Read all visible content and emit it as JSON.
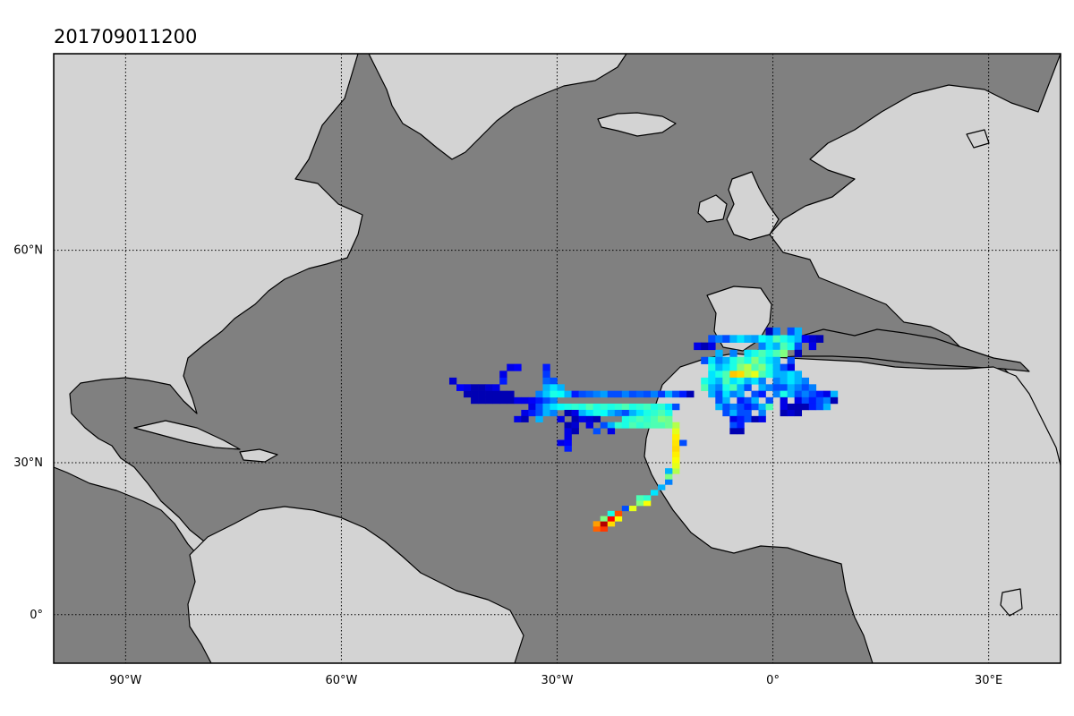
{
  "title": "201709011200",
  "colors": {
    "ocean": "#808080",
    "land": "#d3d3d3",
    "coast": "#000000",
    "grid": "#000000"
  },
  "map": {
    "projection": "mercator",
    "lon_range": [
      -100,
      40
    ],
    "lat_range": [
      -10,
      75
    ],
    "gridlines": "dotted",
    "meridians": [
      {
        "lon": -90,
        "label": "90°W"
      },
      {
        "lon": -60,
        "label": "60°W"
      },
      {
        "lon": -30,
        "label": "30°W"
      },
      {
        "lon": 0,
        "label": "0°"
      },
      {
        "lon": 30,
        "label": "30°E"
      }
    ],
    "parallels": [
      {
        "lat": 0,
        "label": "0°"
      },
      {
        "lat": 30,
        "label": "30°N"
      },
      {
        "lat": 60,
        "label": "60°N"
      }
    ]
  },
  "chart_data": {
    "type": "heatmap",
    "colormap": "jet",
    "cell_size_deg": 1,
    "value_range": [
      0,
      1
    ],
    "cells": [
      [
        -25,
        17,
        0.78
      ],
      [
        -24,
        17,
        0.82
      ],
      [
        -25,
        18,
        0.72
      ],
      [
        -24,
        18,
        0.95
      ],
      [
        -23,
        18,
        0.66
      ],
      [
        -24,
        19,
        0.5
      ],
      [
        -23,
        19,
        0.88
      ],
      [
        -22,
        19,
        0.62
      ],
      [
        -23,
        20,
        0.4
      ],
      [
        -22,
        20,
        0.8
      ],
      [
        -21,
        21,
        0.2
      ],
      [
        -20,
        21,
        0.6
      ],
      [
        -19,
        22,
        0.5
      ],
      [
        -18,
        22,
        0.62
      ],
      [
        -19,
        23,
        0.45
      ],
      [
        -18,
        23,
        0.42
      ],
      [
        -17,
        24,
        0.35
      ],
      [
        -16,
        25,
        0.3
      ],
      [
        -15,
        26,
        0.25
      ],
      [
        -15,
        27,
        0.5
      ],
      [
        -14,
        28,
        0.55
      ],
      [
        -15,
        28,
        0.3
      ],
      [
        -14,
        29,
        0.6
      ],
      [
        -14,
        30,
        0.62
      ],
      [
        -14,
        31,
        0.64
      ],
      [
        -14,
        32,
        0.66
      ],
      [
        -14,
        33,
        0.65
      ],
      [
        -14,
        34,
        0.64
      ],
      [
        -14,
        35,
        0.6
      ],
      [
        -14,
        36,
        0.55
      ],
      [
        -13,
        33,
        0.2
      ],
      [
        -45,
        43,
        0.08
      ],
      [
        -44,
        42,
        0.12
      ],
      [
        -43,
        42,
        0.1
      ],
      [
        -42,
        42,
        0.05
      ],
      [
        -41,
        42,
        0.05
      ],
      [
        -40,
        42,
        0.08
      ],
      [
        -39,
        42,
        0.1
      ],
      [
        -43,
        41,
        0.05
      ],
      [
        -42,
        41,
        0.05
      ],
      [
        -41,
        41,
        0.05
      ],
      [
        -40,
        41,
        0.05
      ],
      [
        -39,
        41,
        0.05
      ],
      [
        -38,
        41,
        0.05
      ],
      [
        -37,
        41,
        0.05
      ],
      [
        -42,
        40,
        0.05
      ],
      [
        -41,
        40,
        0.05
      ],
      [
        -40,
        40,
        0.05
      ],
      [
        -39,
        40,
        0.05
      ],
      [
        -38,
        40,
        0.05
      ],
      [
        -37,
        40,
        0.05
      ],
      [
        -36,
        40,
        0.1
      ],
      [
        -35,
        40,
        0.1
      ],
      [
        -34,
        40,
        0.12
      ],
      [
        -33,
        40,
        0.15
      ],
      [
        -32,
        40,
        0.2
      ],
      [
        -31,
        40,
        0.25
      ],
      [
        -38,
        44,
        0.1
      ],
      [
        -37,
        45,
        0.1
      ],
      [
        -36,
        45,
        0.12
      ],
      [
        -38,
        43,
        0.15
      ],
      [
        -32,
        45,
        0.15
      ],
      [
        -32,
        44,
        0.18
      ],
      [
        -32,
        43,
        0.22
      ],
      [
        -31,
        43,
        0.2
      ],
      [
        -32,
        42,
        0.3
      ],
      [
        -31,
        42,
        0.35
      ],
      [
        -30,
        42,
        0.3
      ],
      [
        -33,
        41,
        0.25
      ],
      [
        -32,
        41,
        0.32
      ],
      [
        -31,
        41,
        0.4
      ],
      [
        -30,
        41,
        0.38
      ],
      [
        -29,
        41,
        0.3
      ],
      [
        -28,
        41,
        0.15
      ],
      [
        -27,
        41,
        0.2
      ],
      [
        -26,
        41,
        0.22
      ],
      [
        -25,
        41,
        0.25
      ],
      [
        -24,
        41,
        0.28
      ],
      [
        -23,
        41,
        0.2
      ],
      [
        -22,
        41,
        0.2
      ],
      [
        -21,
        41,
        0.25
      ],
      [
        -20,
        41,
        0.2
      ],
      [
        -19,
        41,
        0.22
      ],
      [
        -18,
        41,
        0.2
      ],
      [
        -17,
        41,
        0.25
      ],
      [
        -16,
        41,
        0.18
      ],
      [
        -15,
        41,
        0.3
      ],
      [
        -14,
        41,
        0.2
      ],
      [
        -13,
        41,
        0.15
      ],
      [
        -12,
        41,
        0.05
      ],
      [
        -34,
        39,
        0.1
      ],
      [
        -33,
        39,
        0.2
      ],
      [
        -32,
        39,
        0.3
      ],
      [
        -31,
        39,
        0.35
      ],
      [
        -30,
        39,
        0.38
      ],
      [
        -29,
        39,
        0.4
      ],
      [
        -28,
        39,
        0.42
      ],
      [
        -27,
        39,
        0.4
      ],
      [
        -26,
        39,
        0.45
      ],
      [
        -25,
        39,
        0.4
      ],
      [
        -24,
        39,
        0.42
      ],
      [
        -23,
        39,
        0.4
      ],
      [
        -22,
        39,
        0.42
      ],
      [
        -21,
        39,
        0.45
      ],
      [
        -20,
        39,
        0.4
      ],
      [
        -19,
        39,
        0.42
      ],
      [
        -18,
        39,
        0.44
      ],
      [
        -17,
        39,
        0.4
      ],
      [
        -16,
        39,
        0.42
      ],
      [
        -15,
        39,
        0.35
      ],
      [
        -14,
        39,
        0.2
      ],
      [
        -35,
        38,
        0.1
      ],
      [
        -34,
        38,
        0.15
      ],
      [
        -33,
        38,
        0.2
      ],
      [
        -32,
        38,
        0.3
      ],
      [
        -31,
        38,
        0.25
      ],
      [
        -29,
        38,
        0.05
      ],
      [
        -28,
        38,
        0.1
      ],
      [
        -27,
        38,
        0.3
      ],
      [
        -26,
        38,
        0.35
      ],
      [
        -25,
        38,
        0.4
      ],
      [
        -24,
        38,
        0.38
      ],
      [
        -23,
        38,
        0.3
      ],
      [
        -22,
        38,
        0.25
      ],
      [
        -21,
        38,
        0.2
      ],
      [
        -20,
        38,
        0.3
      ],
      [
        -19,
        38,
        0.35
      ],
      [
        -18,
        38,
        0.4
      ],
      [
        -17,
        38,
        0.42
      ],
      [
        -16,
        38,
        0.45
      ],
      [
        -15,
        38,
        0.4
      ],
      [
        -36,
        37,
        0.1
      ],
      [
        -35,
        37,
        0.05
      ],
      [
        -33,
        37,
        0.3
      ],
      [
        -30,
        37,
        0.1
      ],
      [
        -28,
        37,
        0.05
      ],
      [
        -27,
        37,
        0.1
      ],
      [
        -26,
        37,
        0.08
      ],
      [
        -25,
        37,
        0.05
      ],
      [
        -21,
        37,
        0.4
      ],
      [
        -20,
        37,
        0.42
      ],
      [
        -19,
        37,
        0.45
      ],
      [
        -18,
        37,
        0.42
      ],
      [
        -17,
        37,
        0.45
      ],
      [
        -16,
        37,
        0.5
      ],
      [
        -15,
        37,
        0.48
      ],
      [
        -29,
        36,
        0.05
      ],
      [
        -28,
        36,
        0.08
      ],
      [
        -26,
        36,
        0.1
      ],
      [
        -24,
        36,
        0.2
      ],
      [
        -23,
        36,
        0.3
      ],
      [
        -22,
        36,
        0.42
      ],
      [
        -21,
        36,
        0.4
      ],
      [
        -20,
        36,
        0.45
      ],
      [
        -19,
        36,
        0.42
      ],
      [
        -18,
        36,
        0.44
      ],
      [
        -17,
        36,
        0.45
      ],
      [
        -16,
        36,
        0.45
      ],
      [
        -15,
        36,
        0.48
      ],
      [
        -29,
        35,
        0.1
      ],
      [
        -28,
        35,
        0.05
      ],
      [
        -25,
        35,
        0.2
      ],
      [
        -23,
        35,
        0.1
      ],
      [
        -29,
        34,
        0.1
      ],
      [
        -30,
        33,
        0.1
      ],
      [
        -29,
        33,
        0.12
      ],
      [
        -29,
        32,
        0.15
      ],
      [
        -11,
        48,
        0.1
      ],
      [
        -10,
        48,
        0.05
      ],
      [
        -9,
        49,
        0.2
      ],
      [
        -8,
        49,
        0.25
      ],
      [
        -7,
        49,
        0.2
      ],
      [
        -6,
        49,
        0.3
      ],
      [
        -5,
        49,
        0.35
      ],
      [
        -4,
        49,
        0.3
      ],
      [
        -3,
        49,
        0.28
      ],
      [
        -2,
        49,
        0.38
      ],
      [
        -1,
        49,
        0.35
      ],
      [
        0,
        49,
        0.45
      ],
      [
        1,
        49,
        0.4
      ],
      [
        2,
        49,
        0.35
      ],
      [
        3,
        49,
        0.3
      ],
      [
        4,
        49,
        0.12
      ],
      [
        5,
        49,
        0.08
      ],
      [
        6,
        49,
        0.05
      ],
      [
        -9,
        48,
        0.1
      ],
      [
        -2,
        48,
        0.25
      ],
      [
        -1,
        48,
        0.35
      ],
      [
        0,
        48,
        0.3
      ],
      [
        1,
        48,
        0.45
      ],
      [
        2,
        48,
        0.4
      ],
      [
        3,
        48,
        0.2
      ],
      [
        5,
        48,
        0.1
      ],
      [
        -1,
        50,
        0.05
      ],
      [
        0,
        50,
        0.25
      ],
      [
        2,
        50,
        0.2
      ],
      [
        3,
        50,
        0.3
      ],
      [
        -8,
        47,
        0.3
      ],
      [
        -6,
        47,
        0.25
      ],
      [
        -4,
        47,
        0.35
      ],
      [
        -3,
        47,
        0.4
      ],
      [
        -2,
        47,
        0.45
      ],
      [
        -1,
        47,
        0.4
      ],
      [
        0,
        47,
        0.45
      ],
      [
        1,
        47,
        0.5
      ],
      [
        3,
        47,
        0.05
      ],
      [
        -10,
        46,
        0.2
      ],
      [
        -9,
        46,
        0.35
      ],
      [
        -8,
        46,
        0.25
      ],
      [
        -7,
        46,
        0.3
      ],
      [
        -6,
        46,
        0.4
      ],
      [
        -5,
        46,
        0.45
      ],
      [
        -4,
        46,
        0.4
      ],
      [
        -3,
        46,
        0.5
      ],
      [
        -2,
        46,
        0.42
      ],
      [
        -1,
        46,
        0.35
      ],
      [
        0,
        46,
        0.3
      ],
      [
        2,
        46,
        0.2
      ],
      [
        -9,
        45,
        0.4
      ],
      [
        -8,
        45,
        0.3
      ],
      [
        -7,
        45,
        0.35
      ],
      [
        -6,
        45,
        0.4
      ],
      [
        -5,
        45,
        0.5
      ],
      [
        -4,
        45,
        0.55
      ],
      [
        -3,
        45,
        0.45
      ],
      [
        -2,
        45,
        0.5
      ],
      [
        -1,
        45,
        0.4
      ],
      [
        0,
        45,
        0.3
      ],
      [
        1,
        45,
        0.2
      ],
      [
        2,
        45,
        0.1
      ],
      [
        -9,
        44,
        0.35
      ],
      [
        -8,
        44,
        0.4
      ],
      [
        -7,
        44,
        0.45
      ],
      [
        -6,
        44,
        0.68
      ],
      [
        -5,
        44,
        0.66
      ],
      [
        -4,
        44,
        0.55
      ],
      [
        -3,
        44,
        0.6
      ],
      [
        -2,
        44,
        0.45
      ],
      [
        -1,
        44,
        0.4
      ],
      [
        0,
        44,
        0.3
      ],
      [
        1,
        44,
        0.3
      ],
      [
        2,
        44,
        0.35
      ],
      [
        3,
        44,
        0.3
      ],
      [
        -10,
        43,
        0.4
      ],
      [
        -9,
        43,
        0.35
      ],
      [
        -8,
        43,
        0.3
      ],
      [
        -7,
        43,
        0.45
      ],
      [
        -6,
        43,
        0.35
      ],
      [
        -5,
        43,
        0.4
      ],
      [
        -4,
        43,
        0.3
      ],
      [
        -3,
        43,
        0.35
      ],
      [
        -2,
        43,
        0.25
      ],
      [
        0,
        43,
        0.25
      ],
      [
        1,
        43,
        0.3
      ],
      [
        2,
        43,
        0.35
      ],
      [
        3,
        43,
        0.3
      ],
      [
        4,
        43,
        0.25
      ],
      [
        -10,
        42,
        0.45
      ],
      [
        -9,
        42,
        0.3
      ],
      [
        -8,
        42,
        0.25
      ],
      [
        -7,
        42,
        0.4
      ],
      [
        -6,
        42,
        0.45
      ],
      [
        -5,
        42,
        0.3
      ],
      [
        -4,
        42,
        0.2
      ],
      [
        -2,
        42,
        0.3
      ],
      [
        -1,
        42,
        0.25
      ],
      [
        0,
        42,
        0.2
      ],
      [
        1,
        42,
        0.2
      ],
      [
        2,
        42,
        0.3
      ],
      [
        3,
        42,
        0.25
      ],
      [
        4,
        42,
        0.2
      ],
      [
        5,
        42,
        0.25
      ],
      [
        -9,
        41,
        0.3
      ],
      [
        -8,
        41,
        0.2
      ],
      [
        -7,
        41,
        0.35
      ],
      [
        -6,
        41,
        0.25
      ],
      [
        -5,
        41,
        0.3
      ],
      [
        -3,
        41,
        0.2
      ],
      [
        -2,
        41,
        0.15
      ],
      [
        0,
        41,
        0.25
      ],
      [
        1,
        41,
        0.4
      ],
      [
        2,
        41,
        0.3
      ],
      [
        3,
        41,
        0.2
      ],
      [
        4,
        41,
        0.25
      ],
      [
        5,
        41,
        0.2
      ],
      [
        6,
        41,
        0.15
      ],
      [
        7,
        41,
        0.1
      ],
      [
        8,
        41,
        0.3
      ],
      [
        -8,
        40,
        0.2
      ],
      [
        -7,
        40,
        0.3
      ],
      [
        -5,
        40,
        0.15
      ],
      [
        -4,
        40,
        0.2
      ],
      [
        -3,
        40,
        0.3
      ],
      [
        -1,
        40,
        0.2
      ],
      [
        1,
        40,
        0.1
      ],
      [
        3,
        40,
        0.1
      ],
      [
        4,
        40,
        0.2
      ],
      [
        5,
        40,
        0.15
      ],
      [
        6,
        40,
        0.2
      ],
      [
        7,
        40,
        0.25
      ],
      [
        8,
        40,
        0.05
      ],
      [
        -8,
        39,
        0.3
      ],
      [
        -7,
        39,
        0.2
      ],
      [
        -6,
        39,
        0.25
      ],
      [
        -5,
        39,
        0.2
      ],
      [
        -4,
        39,
        0.15
      ],
      [
        -3,
        39,
        0.2
      ],
      [
        -2,
        39,
        0.3
      ],
      [
        -1,
        39,
        0.45
      ],
      [
        1,
        39,
        0.1
      ],
      [
        2,
        39,
        0.05
      ],
      [
        3,
        39,
        0.05
      ],
      [
        4,
        39,
        0.05
      ],
      [
        5,
        39,
        0.15
      ],
      [
        6,
        39,
        0.2
      ],
      [
        7,
        39,
        0.3
      ],
      [
        -7,
        38,
        0.2
      ],
      [
        -6,
        38,
        0.3
      ],
      [
        -5,
        38,
        0.2
      ],
      [
        -4,
        38,
        0.2
      ],
      [
        -2,
        38,
        0.25
      ],
      [
        1,
        38,
        0.05
      ],
      [
        2,
        38,
        0.08
      ],
      [
        3,
        38,
        0.05
      ],
      [
        -6,
        37,
        0.1
      ],
      [
        -5,
        37,
        0.15
      ],
      [
        -4,
        37,
        0.2
      ],
      [
        -3,
        37,
        0.05
      ],
      [
        -2,
        37,
        0.1
      ],
      [
        -6,
        36,
        0.2
      ],
      [
        -5,
        36,
        0.15
      ],
      [
        -6,
        35,
        0.05
      ],
      [
        -5,
        35,
        0.05
      ]
    ]
  }
}
